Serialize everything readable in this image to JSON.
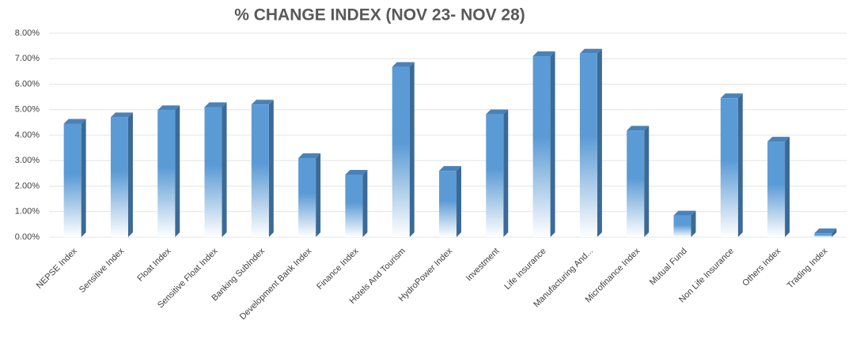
{
  "chart_data": {
    "type": "bar",
    "title": "% CHANGE INDEX (NOV 23- NOV 28)",
    "categories": [
      "NEPSE Index",
      "Sensitive Index",
      "Float Index",
      "Sensitive Float Index",
      "Banking SubIndex",
      "Development Bank Index",
      "Finance Index",
      "Hotels And Tourism",
      "HydroPower Index",
      "Investment",
      "Life Insurance",
      "Manufacturing And...",
      "Microfinance Index",
      "Mutual Fund",
      "Non Life Insurance",
      "Others Index",
      "Trading Index"
    ],
    "values": [
      4.45,
      4.7,
      4.98,
      5.1,
      5.2,
      3.1,
      2.45,
      6.68,
      2.6,
      4.82,
      7.1,
      7.2,
      4.18,
      0.85,
      5.45,
      3.75,
      0.15
    ],
    "color": "#5b9bd5",
    "ylim": [
      0,
      8
    ],
    "yticks": [
      {
        "value": 0,
        "label": "0.00%"
      },
      {
        "value": 1,
        "label": "1.00%"
      },
      {
        "value": 2,
        "label": "2.00%"
      },
      {
        "value": 3,
        "label": "3.00%"
      },
      {
        "value": 4,
        "label": "4.00%"
      },
      {
        "value": 5,
        "label": "5.00%"
      },
      {
        "value": 6,
        "label": "6.00%"
      },
      {
        "value": 7,
        "label": "7.00%"
      },
      {
        "value": 8,
        "label": "8.00%"
      }
    ],
    "grid": true
  }
}
